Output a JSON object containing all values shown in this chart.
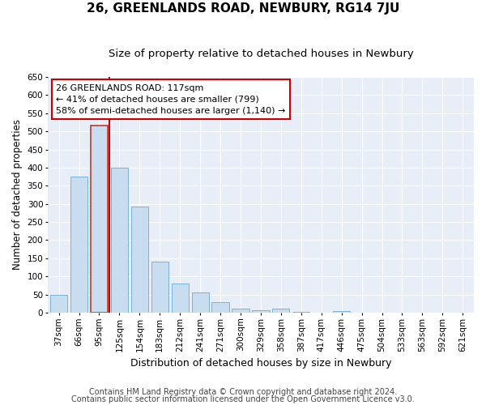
{
  "title": "26, GREENLANDS ROAD, NEWBURY, RG14 7JU",
  "subtitle": "Size of property relative to detached houses in Newbury",
  "xlabel": "Distribution of detached houses by size in Newbury",
  "ylabel": "Number of detached properties",
  "categories": [
    "37sqm",
    "66sqm",
    "95sqm",
    "125sqm",
    "154sqm",
    "183sqm",
    "212sqm",
    "241sqm",
    "271sqm",
    "300sqm",
    "329sqm",
    "358sqm",
    "387sqm",
    "417sqm",
    "446sqm",
    "475sqm",
    "504sqm",
    "533sqm",
    "563sqm",
    "592sqm",
    "621sqm"
  ],
  "values": [
    50,
    375,
    515,
    400,
    293,
    140,
    80,
    55,
    30,
    12,
    7,
    12,
    3,
    0,
    5,
    0,
    0,
    0,
    0,
    0,
    0
  ],
  "bar_color": "#c9ddf0",
  "bar_edge_color": "#7ab3d8",
  "highlight_bar_index": 2,
  "highlight_bar_edge_color": "#c0392b",
  "vline_x": 2.5,
  "vline_color": "#cc0000",
  "annotation_text": "26 GREENLANDS ROAD: 117sqm\n← 41% of detached houses are smaller (799)\n58% of semi-detached houses are larger (1,140) →",
  "annotation_box_facecolor": "white",
  "annotation_box_edgecolor": "#cc0000",
  "ylim": [
    0,
    650
  ],
  "yticks": [
    0,
    50,
    100,
    150,
    200,
    250,
    300,
    350,
    400,
    450,
    500,
    550,
    600,
    650
  ],
  "footnote1": "Contains HM Land Registry data © Crown copyright and database right 2024.",
  "footnote2": "Contains public sector information licensed under the Open Government Licence v3.0.",
  "fig_facecolor": "#ffffff",
  "axes_facecolor": "#e8eef7",
  "grid_color": "#ffffff",
  "title_fontsize": 11,
  "subtitle_fontsize": 9.5,
  "ylabel_fontsize": 8.5,
  "xlabel_fontsize": 9,
  "tick_fontsize": 7.5,
  "annotation_fontsize": 8,
  "footnote_fontsize": 7
}
